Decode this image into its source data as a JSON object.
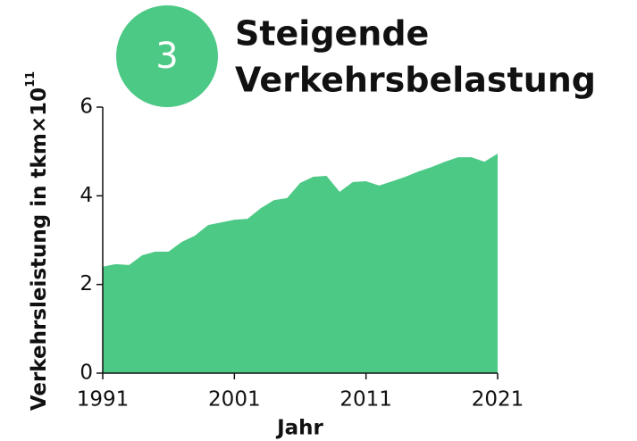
{
  "chart_data": {
    "type": "area",
    "badge": "3",
    "title": [
      "Steigende",
      "Verkehrsbelastung"
    ],
    "ylabel": "Verkehrsleistung in tkm×10",
    "ylabel_exponent": "11",
    "xlabel": "Jahr",
    "color": "#4dc986",
    "x": [
      1991,
      1992,
      1993,
      1994,
      1995,
      1996,
      1997,
      1998,
      1999,
      2000,
      2001,
      2002,
      2003,
      2004,
      2005,
      2006,
      2007,
      2008,
      2009,
      2010,
      2011,
      2012,
      2013,
      2014,
      2015,
      2016,
      2017,
      2018,
      2019,
      2020,
      2021
    ],
    "values": [
      2.4,
      2.46,
      2.44,
      2.66,
      2.74,
      2.74,
      2.96,
      3.1,
      3.34,
      3.4,
      3.46,
      3.48,
      3.72,
      3.9,
      3.95,
      4.29,
      4.43,
      4.45,
      4.09,
      4.31,
      4.33,
      4.23,
      4.33,
      4.43,
      4.55,
      4.65,
      4.77,
      4.87,
      4.87,
      4.77,
      4.95
    ],
    "xlim": [
      1991,
      2021
    ],
    "xticks": [
      1991,
      2001,
      2011,
      2021
    ],
    "ylim": [
      0,
      6
    ],
    "yticks": [
      0,
      2,
      4,
      6
    ]
  }
}
